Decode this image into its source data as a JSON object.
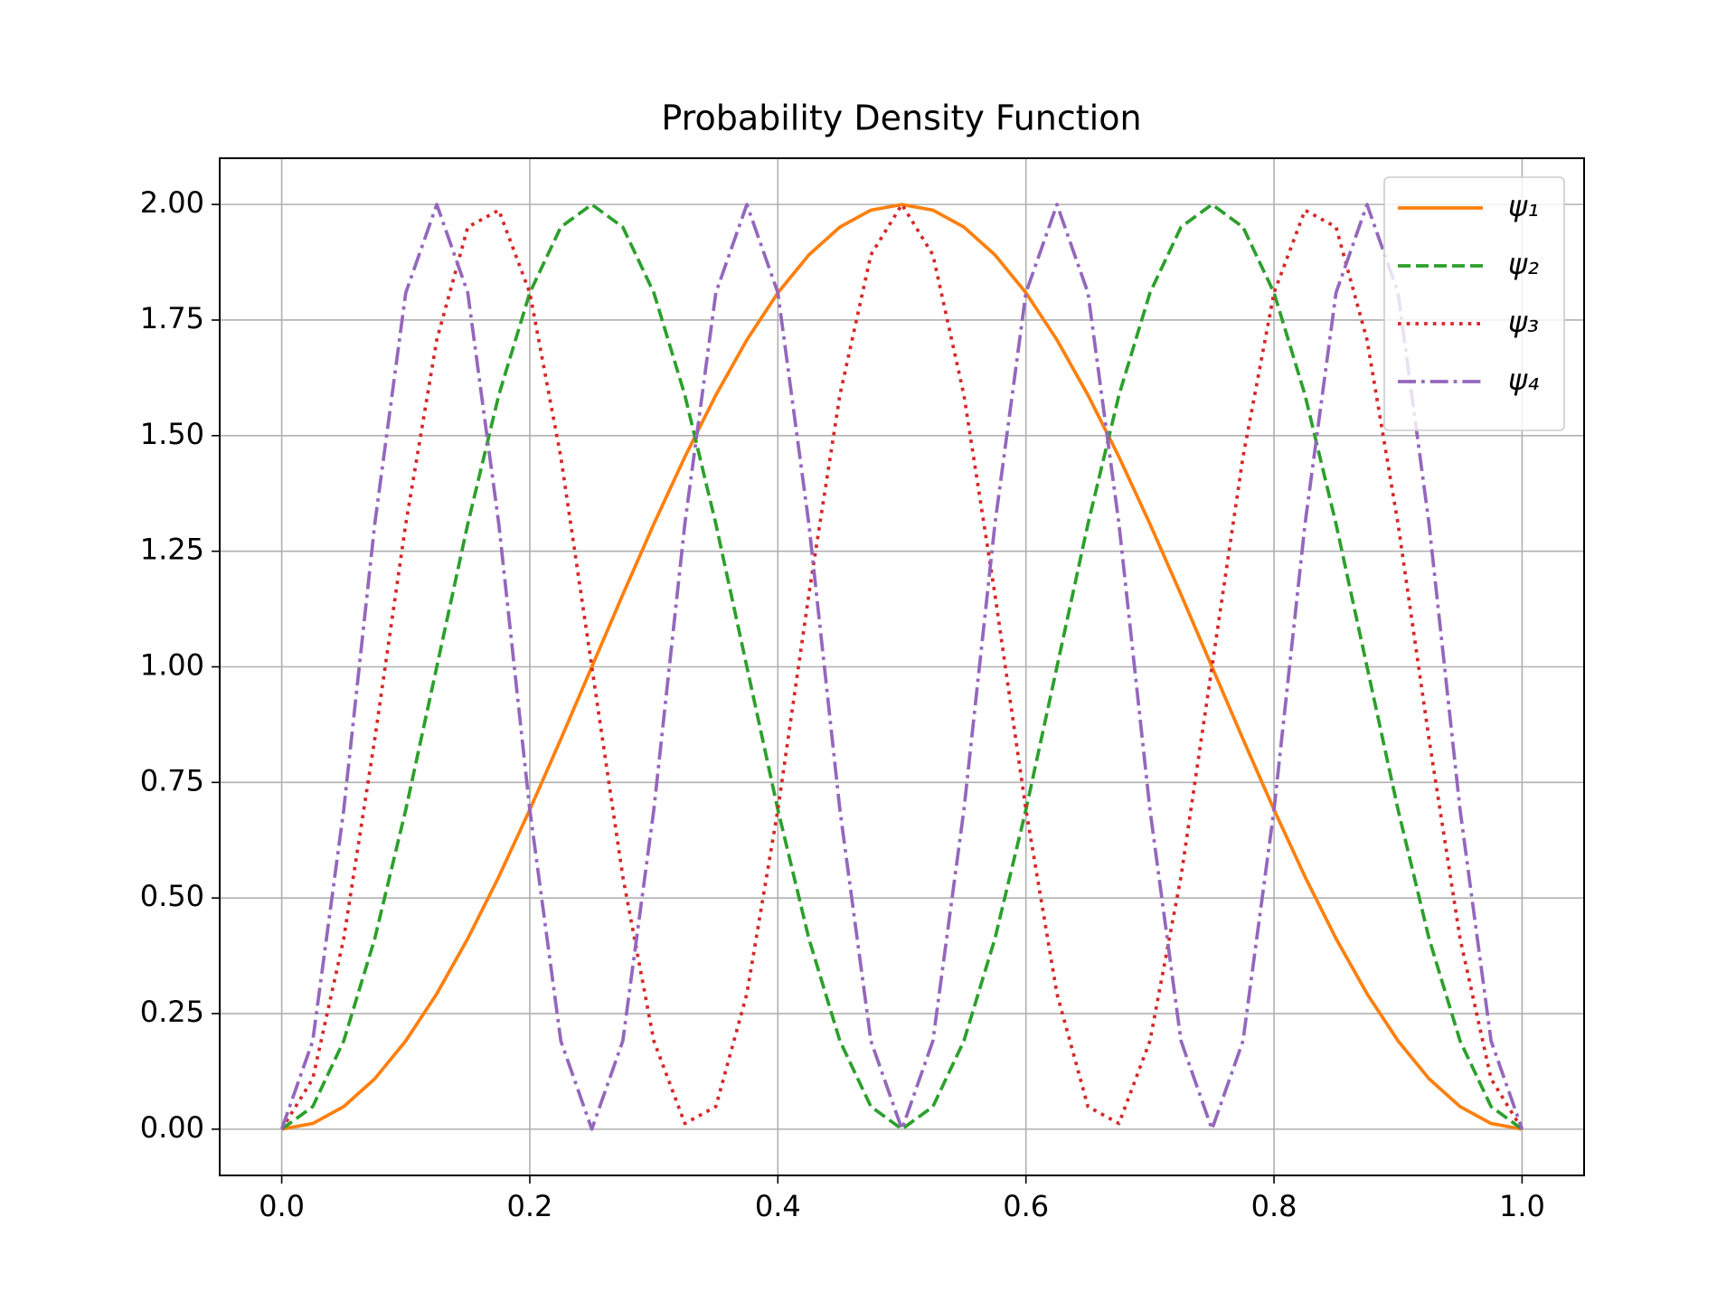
{
  "chart_data": {
    "type": "line",
    "title": "Probability Density Function",
    "x": [
      0,
      0.025,
      0.05,
      0.075,
      0.1,
      0.125,
      0.15,
      0.175,
      0.2,
      0.225,
      0.25,
      0.275,
      0.3,
      0.325,
      0.35,
      0.375,
      0.4,
      0.425,
      0.45,
      0.475,
      0.5,
      0.525,
      0.55,
      0.575,
      0.6,
      0.625,
      0.65,
      0.675,
      0.7,
      0.725,
      0.75,
      0.775,
      0.8,
      0.825,
      0.85,
      0.875,
      0.9,
      0.925,
      0.95,
      0.975,
      1
    ],
    "series": [
      {
        "name": "ψ₁",
        "color": "#ff7f0e",
        "dash": "solid",
        "values": [
          0,
          0.0123,
          0.0489,
          0.109,
          0.191,
          0.2929,
          0.4122,
          0.546,
          0.691,
          0.8436,
          1,
          1.1564,
          1.309,
          1.454,
          1.5878,
          1.7071,
          1.809,
          1.891,
          1.9511,
          1.9877,
          2,
          1.9877,
          1.9511,
          1.891,
          1.809,
          1.7071,
          1.5878,
          1.454,
          1.309,
          1.1564,
          1,
          0.8436,
          0.691,
          0.546,
          0.4122,
          0.2929,
          0.191,
          0.109,
          0.0489,
          0.0123,
          0
        ]
      },
      {
        "name": "ψ₂",
        "color": "#2ca02c",
        "dash": "dashed",
        "values": [
          0,
          0.0489,
          0.191,
          0.4122,
          0.691,
          1,
          1.309,
          1.5878,
          1.809,
          1.9511,
          2,
          1.9511,
          1.809,
          1.5878,
          1.309,
          1,
          0.691,
          0.4122,
          0.191,
          0.0489,
          0,
          0.0489,
          0.191,
          0.4122,
          0.691,
          1,
          1.309,
          1.5878,
          1.809,
          1.9511,
          2,
          1.9511,
          1.809,
          1.5878,
          1.309,
          1,
          0.691,
          0.4122,
          0.191,
          0.0489,
          0
        ]
      },
      {
        "name": "ψ₃",
        "color": "#d62728",
        "dash": "dotted",
        "values": [
          0,
          0.109,
          0.4122,
          0.8436,
          1.309,
          1.7071,
          1.9511,
          1.9877,
          1.809,
          1.454,
          1,
          0.546,
          0.191,
          0.0123,
          0.0489,
          0.2929,
          0.691,
          1.1564,
          1.5878,
          1.891,
          2,
          1.891,
          1.5878,
          1.1564,
          0.691,
          0.2929,
          0.0489,
          0.0123,
          0.191,
          0.546,
          1,
          1.454,
          1.809,
          1.9877,
          1.9511,
          1.7071,
          1.309,
          0.8436,
          0.4122,
          0.109,
          0
        ]
      },
      {
        "name": "ψ₄",
        "color": "#9467bd",
        "dash": "dashdot",
        "values": [
          0,
          0.191,
          0.691,
          1.309,
          1.809,
          2,
          1.809,
          1.309,
          0.691,
          0.191,
          0,
          0.191,
          0.691,
          1.309,
          1.809,
          2,
          1.809,
          1.309,
          0.691,
          0.191,
          0,
          0.191,
          0.691,
          1.309,
          1.809,
          2,
          1.809,
          1.309,
          0.691,
          0.191,
          0,
          0.191,
          0.691,
          1.309,
          1.809,
          2,
          1.809,
          1.309,
          0.691,
          0.191,
          0
        ]
      }
    ],
    "xlim": [
      -0.05,
      1.05
    ],
    "xticks": [
      {
        "value": 0,
        "label": "0.0"
      },
      0.2,
      0.4,
      0.6,
      0.8,
      {
        "value": 1,
        "label": "1.0"
      }
    ],
    "ylim": [
      -0.1,
      2.1
    ],
    "yticks": [
      {
        "value": 0,
        "label": "0.00"
      },
      0.25,
      {
        "value": 0.5,
        "label": "0.50"
      },
      0.75,
      {
        "value": 1,
        "label": "1.00"
      },
      1.25,
      {
        "value": 1.5,
        "label": "1.50"
      },
      1.75,
      {
        "value": 2,
        "label": "2.00"
      }
    ],
    "grid": true,
    "legend": "upper right"
  }
}
